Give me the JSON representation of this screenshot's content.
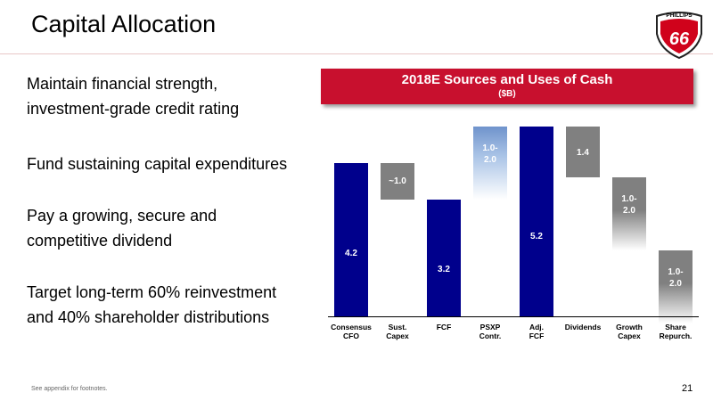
{
  "slide": {
    "title": "Capital Allocation",
    "bullets": [
      "Maintain financial strength,\ninvestment-grade credit rating",
      "Fund sustaining capital expenditures",
      "Pay a growing, secure and\ncompetitive dividend",
      "Target long-term 60% reinvestment\nand 40% shareholder distributions"
    ],
    "logo": {
      "name": "PHILLIPS",
      "number": "66"
    },
    "footnote": "See appendix for footnotes.",
    "page_number": "21"
  },
  "chart_data": {
    "type": "waterfall",
    "title": "2018E Sources and Uses of Cash",
    "subtitle": "($B)",
    "categories": [
      "Consensus\nCFO",
      "Sust.\nCapex",
      "FCF",
      "PSXP\nContr.",
      "Adj.\nFCF",
      "Dividends",
      "Growth\nCapex",
      "Share\nRepurch."
    ],
    "steps": [
      "total",
      "decrease",
      "total",
      "increase",
      "total",
      "decrease",
      "decrease",
      "decrease"
    ],
    "values": [
      4.2,
      1.0,
      3.2,
      2.0,
      5.2,
      1.4,
      2.0,
      2.0
    ],
    "low": [
      null,
      null,
      null,
      1.0,
      null,
      null,
      1.0,
      1.0
    ],
    "value_labels": [
      "4.2",
      "~1.0",
      "3.2",
      "1.0-\n2.0",
      "5.2",
      "1.4",
      "1.0-\n2.0",
      "1.0-\n2.0"
    ],
    "colors": {
      "total": "#00008c",
      "decrease": "#808080",
      "increase": "#a9c3e6"
    }
  }
}
